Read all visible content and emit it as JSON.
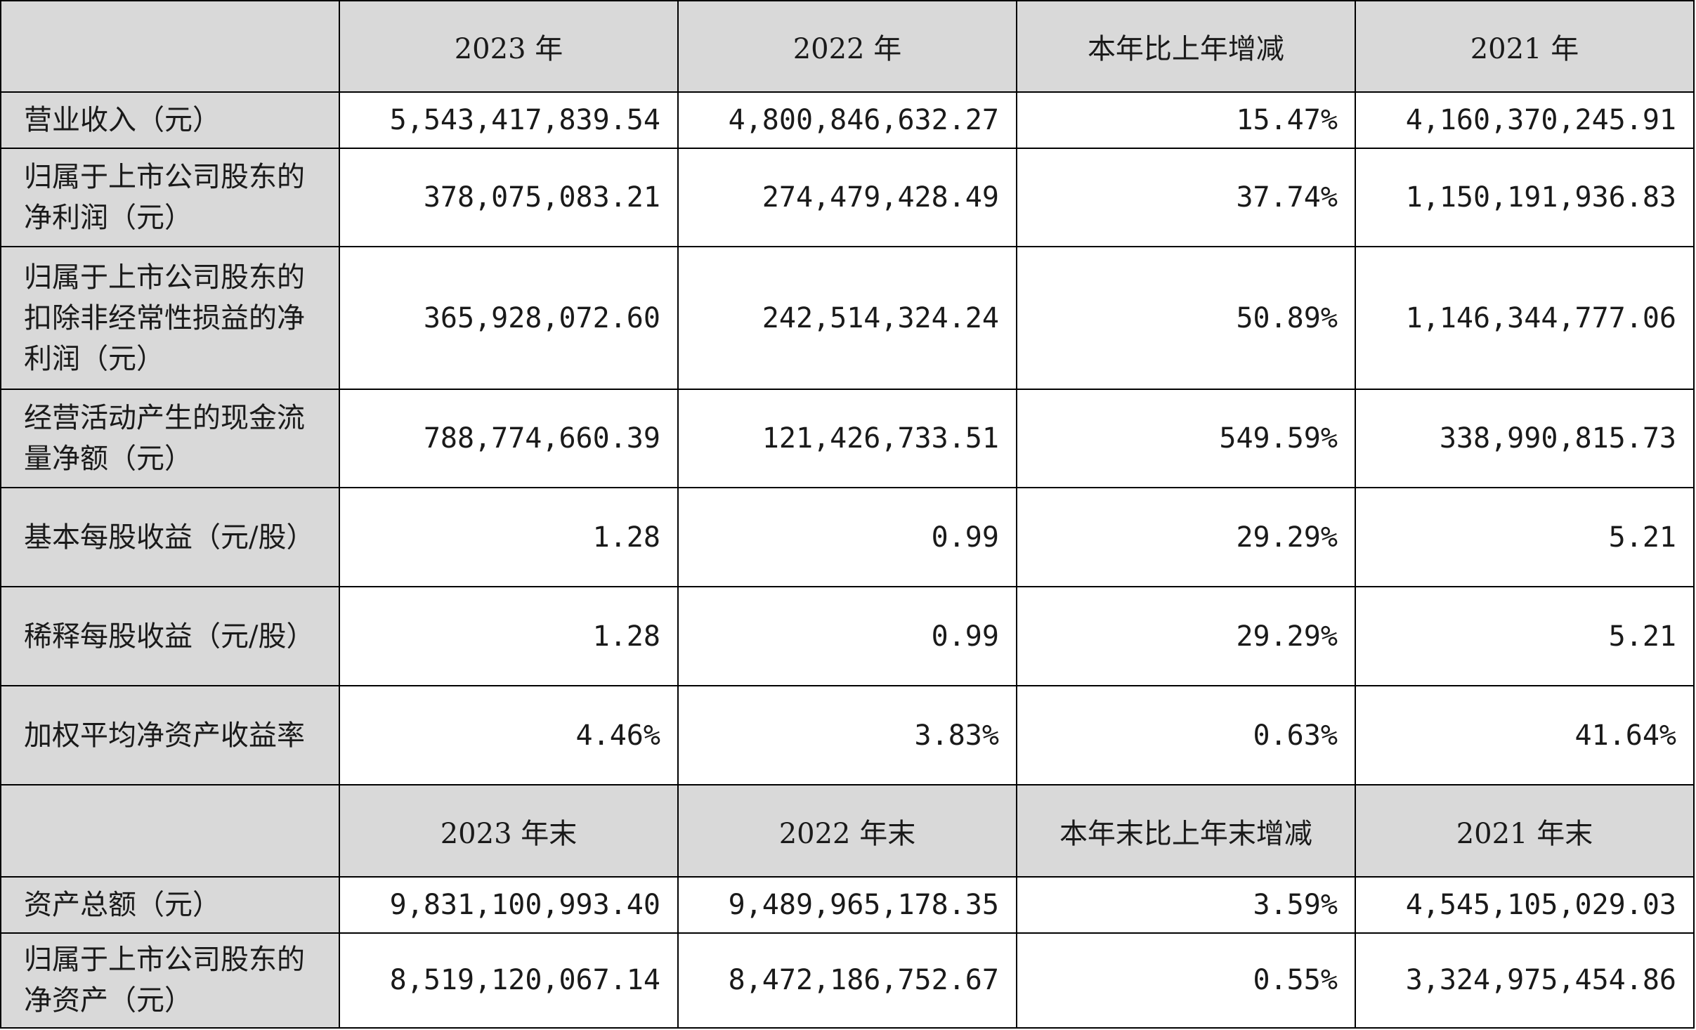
{
  "header_top": [
    "2023 年",
    "2022 年",
    "本年比上年增减",
    "2021 年"
  ],
  "rows_top": [
    {
      "label": "营业收入（元）",
      "v2023": "5,543,417,839.54",
      "v2022": "4,800,846,632.27",
      "change": "15.47%",
      "v2021": "4,160,370,245.91"
    },
    {
      "label": "归属于上市公司股东的净利润（元）",
      "v2023": "378,075,083.21",
      "v2022": "274,479,428.49",
      "change": "37.74%",
      "v2021": "1,150,191,936.83"
    },
    {
      "label": "归属于上市公司股东的扣除非经常性损益的净利润（元）",
      "v2023": "365,928,072.60",
      "v2022": "242,514,324.24",
      "change": "50.89%",
      "v2021": "1,146,344,777.06"
    },
    {
      "label": "经营活动产生的现金流量净额（元）",
      "v2023": "788,774,660.39",
      "v2022": "121,426,733.51",
      "change": "549.59%",
      "v2021": "338,990,815.73"
    },
    {
      "label": "基本每股收益（元/股）",
      "v2023": "1.28",
      "v2022": "0.99",
      "change": "29.29%",
      "v2021": "5.21"
    },
    {
      "label": "稀释每股收益（元/股）",
      "v2023": "1.28",
      "v2022": "0.99",
      "change": "29.29%",
      "v2021": "5.21"
    },
    {
      "label": "加权平均净资产收益率",
      "v2023": "4.46%",
      "v2022": "3.83%",
      "change": "0.63%",
      "v2021": "41.64%"
    }
  ],
  "header_bottom": [
    "2023 年末",
    "2022 年末",
    "本年末比上年末增减",
    "2021 年末"
  ],
  "rows_bottom": [
    {
      "label": "资产总额（元）",
      "v2023": "9,831,100,993.40",
      "v2022": "9,489,965,178.35",
      "change": "3.59%",
      "v2021": "4,545,105,029.03"
    },
    {
      "label": "归属于上市公司股东的净资产（元）",
      "v2023": "8,519,120,067.14",
      "v2022": "8,472,186,752.67",
      "change": "0.55%",
      "v2021": "3,324,975,454.86"
    }
  ]
}
